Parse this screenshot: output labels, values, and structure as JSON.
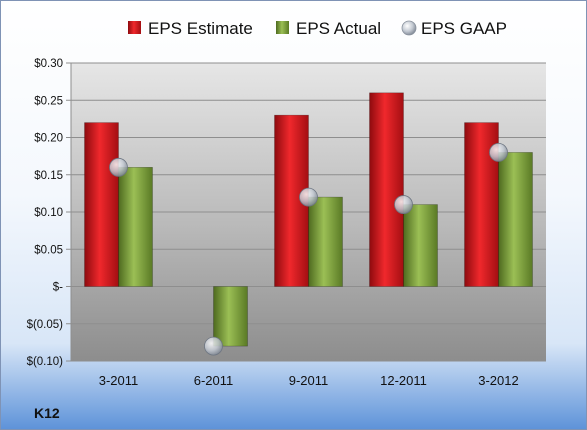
{
  "brand_label": "K12",
  "colors": {
    "estimate": "#d9151b",
    "actual": "#7d9f3a",
    "gaap": "#c9cfd8"
  },
  "chart_data": {
    "type": "bar",
    "categories": [
      "3-2011",
      "6-2011",
      "9-2011",
      "12-2011",
      "3-2012"
    ],
    "series": [
      {
        "name": "EPS Estimate",
        "kind": "bar",
        "values": [
          0.22,
          null,
          0.23,
          0.26,
          0.22
        ]
      },
      {
        "name": "EPS Actual",
        "kind": "bar",
        "values": [
          0.16,
          -0.08,
          0.12,
          0.11,
          0.18
        ]
      },
      {
        "name": "EPS GAAP",
        "kind": "marker",
        "values": [
          0.16,
          -0.08,
          0.12,
          0.11,
          0.18
        ]
      }
    ],
    "y_ticks": [
      {
        "value": 0.3,
        "label": "$0.30"
      },
      {
        "value": 0.25,
        "label": "$0.25"
      },
      {
        "value": 0.2,
        "label": "$0.20"
      },
      {
        "value": 0.15,
        "label": "$0.15"
      },
      {
        "value": 0.1,
        "label": "$0.10"
      },
      {
        "value": 0.05,
        "label": "$0.05"
      },
      {
        "value": 0.0,
        "label": "$-"
      },
      {
        "value": -0.05,
        "label": "$(0.05)"
      },
      {
        "value": -0.1,
        "label": "$(0.10)"
      }
    ],
    "ylim": [
      -0.1,
      0.3
    ],
    "grid": true,
    "legend_position": "top"
  }
}
